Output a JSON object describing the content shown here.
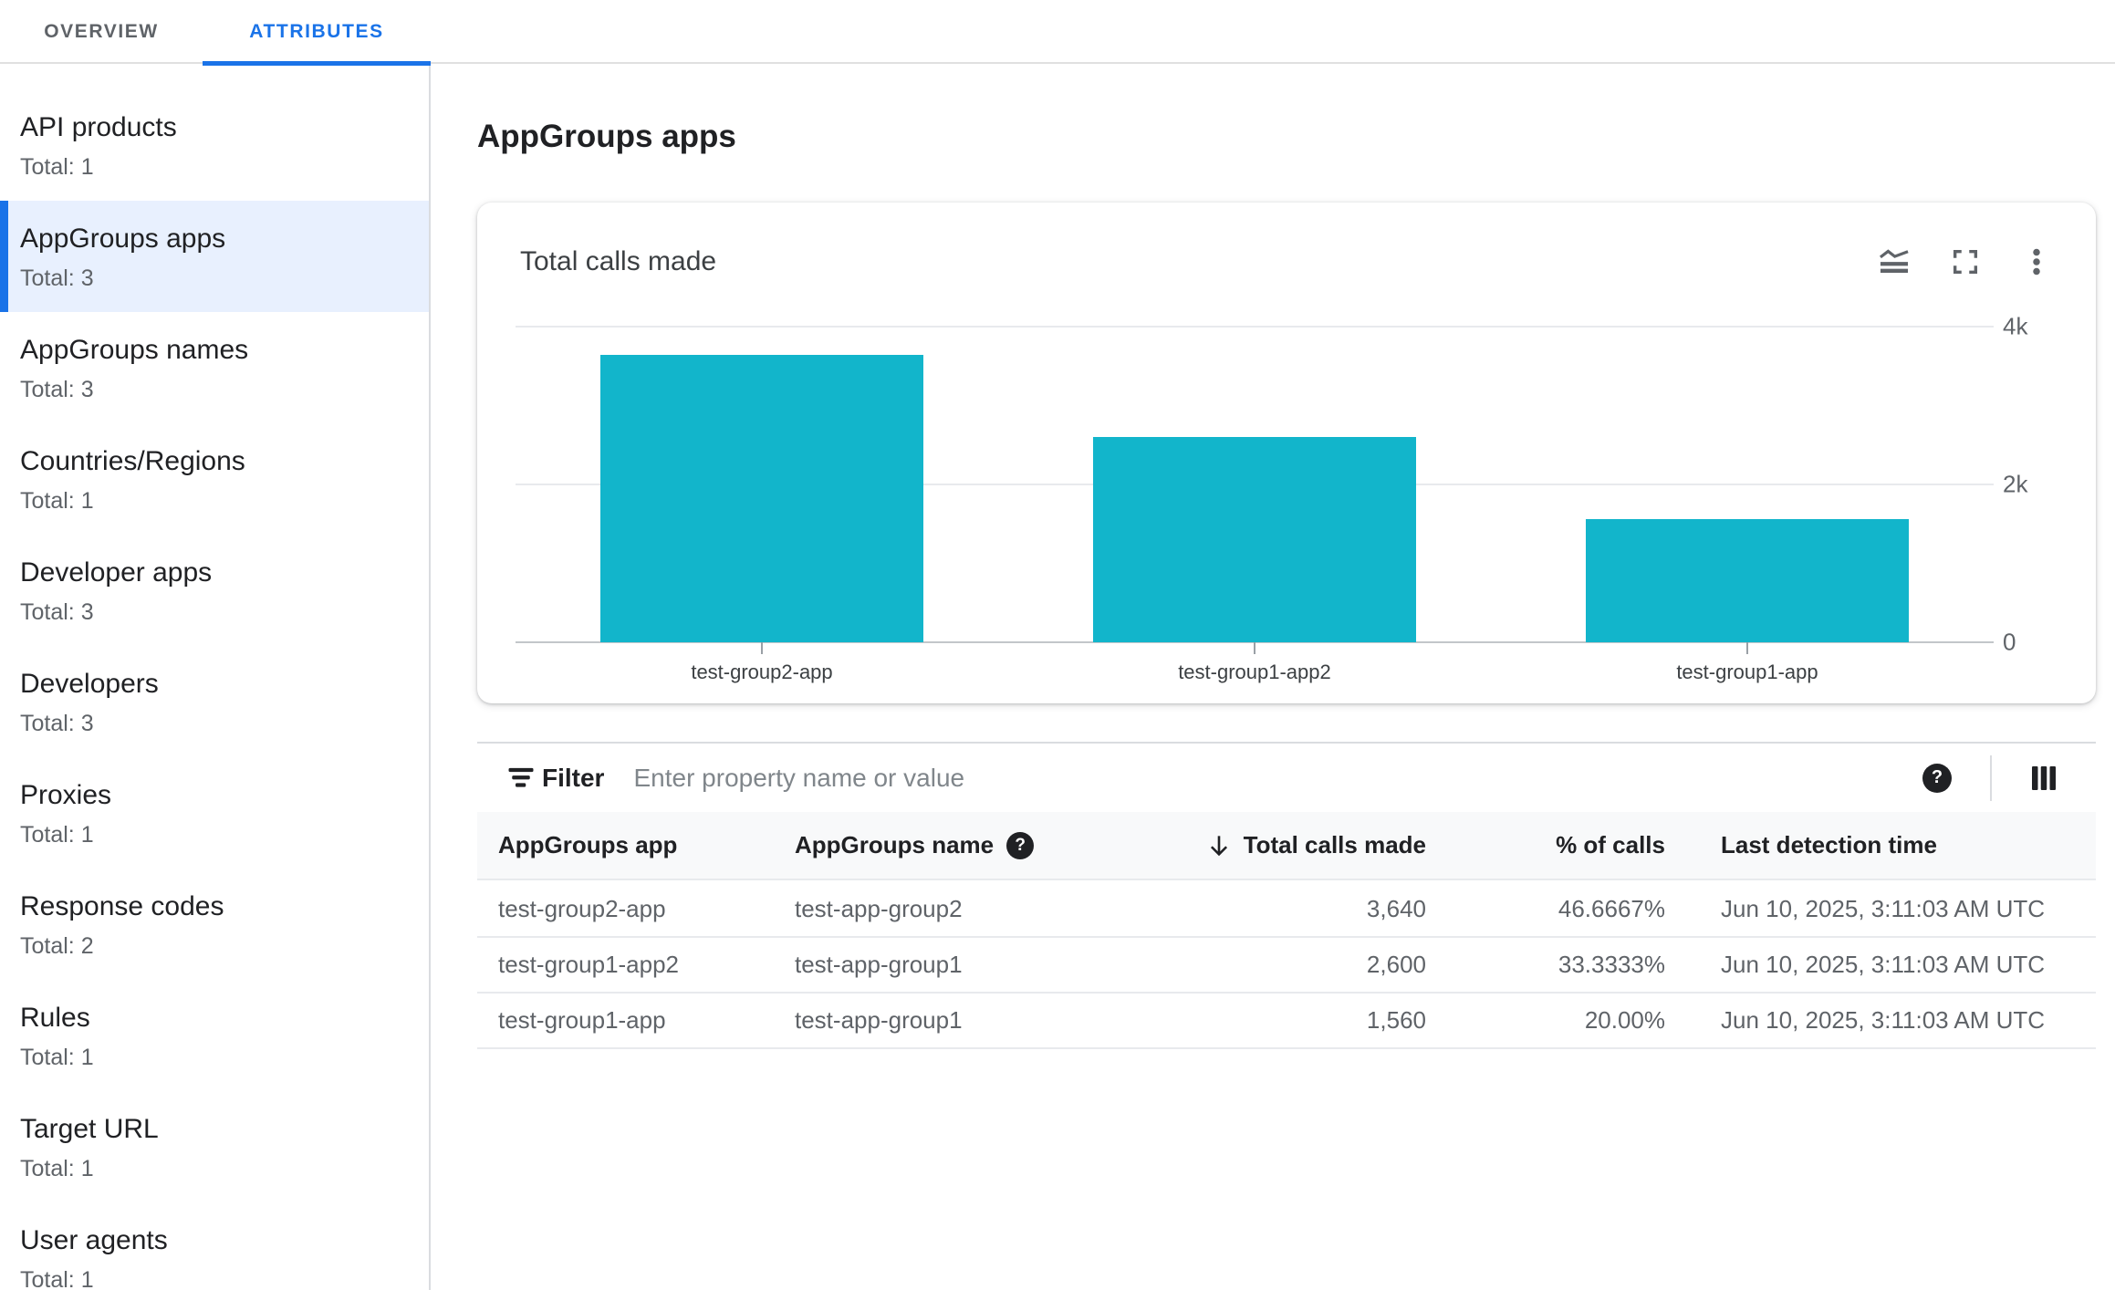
{
  "tabs": {
    "items": [
      {
        "label": "OVERVIEW",
        "active": false
      },
      {
        "label": "ATTRIBUTES",
        "active": true
      }
    ]
  },
  "sidebar": {
    "items": [
      {
        "label": "API products",
        "total": "Total: 1",
        "selected": false
      },
      {
        "label": "AppGroups apps",
        "total": "Total: 3",
        "selected": true
      },
      {
        "label": "AppGroups names",
        "total": "Total: 3",
        "selected": false
      },
      {
        "label": "Countries/Regions",
        "total": "Total: 1",
        "selected": false
      },
      {
        "label": "Developer apps",
        "total": "Total: 3",
        "selected": false
      },
      {
        "label": "Developers",
        "total": "Total: 3",
        "selected": false
      },
      {
        "label": "Proxies",
        "total": "Total: 1",
        "selected": false
      },
      {
        "label": "Response codes",
        "total": "Total: 2",
        "selected": false
      },
      {
        "label": "Rules",
        "total": "Total: 1",
        "selected": false
      },
      {
        "label": "Target URL",
        "total": "Total: 1",
        "selected": false
      },
      {
        "label": "User agents",
        "total": "Total: 1",
        "selected": false
      }
    ]
  },
  "main": {
    "title": "AppGroups apps"
  },
  "chart_card": {
    "title": "Total calls made",
    "icons": [
      "area-chart-icon",
      "fullscreen-icon",
      "more-vert-icon"
    ]
  },
  "chart_data": {
    "type": "bar",
    "title": "Total calls made",
    "categories": [
      "test-group2-app",
      "test-group1-app2",
      "test-group1-app"
    ],
    "values": [
      3640,
      2600,
      1560
    ],
    "xlabel": "",
    "ylabel": "",
    "ylim": [
      0,
      4000
    ],
    "yticks": [
      {
        "label": "4k",
        "value": 4000
      },
      {
        "label": "2k",
        "value": 2000
      },
      {
        "label": "0",
        "value": 0
      }
    ],
    "grid": true,
    "legend_position": "none",
    "bar_color": "#12b5cb"
  },
  "filter": {
    "label": "Filter",
    "placeholder": "Enter property name or value",
    "help_glyph": "?",
    "icons": [
      "filter-list-icon",
      "help-icon",
      "view-columns-icon"
    ]
  },
  "table": {
    "columns": [
      {
        "label": "AppGroups app"
      },
      {
        "label": "AppGroups name",
        "help": true,
        "help_glyph": "?"
      },
      {
        "label": "Total calls made",
        "sort": "desc",
        "align": "right"
      },
      {
        "label": "% of calls",
        "align": "right"
      },
      {
        "label": "Last detection time"
      }
    ],
    "rows": [
      [
        "test-group2-app",
        "test-app-group2",
        "3,640",
        "46.6667%",
        "Jun 10, 2025, 3:11:03 AM UTC"
      ],
      [
        "test-group1-app2",
        "test-app-group1",
        "2,600",
        "33.3333%",
        "Jun 10, 2025, 3:11:03 AM UTC"
      ],
      [
        "test-group1-app",
        "test-app-group1",
        "1,560",
        "20.00%",
        "Jun 10, 2025, 3:11:03 AM UTC"
      ]
    ]
  },
  "colors": {
    "accent_blue": "#1a73e8",
    "selected_bg": "#e8f0fe",
    "bar_teal": "#12b5cb",
    "text_primary": "#202124",
    "text_secondary": "#5f6368",
    "divider": "#dadce0",
    "header_bg": "#f8f9fa"
  }
}
